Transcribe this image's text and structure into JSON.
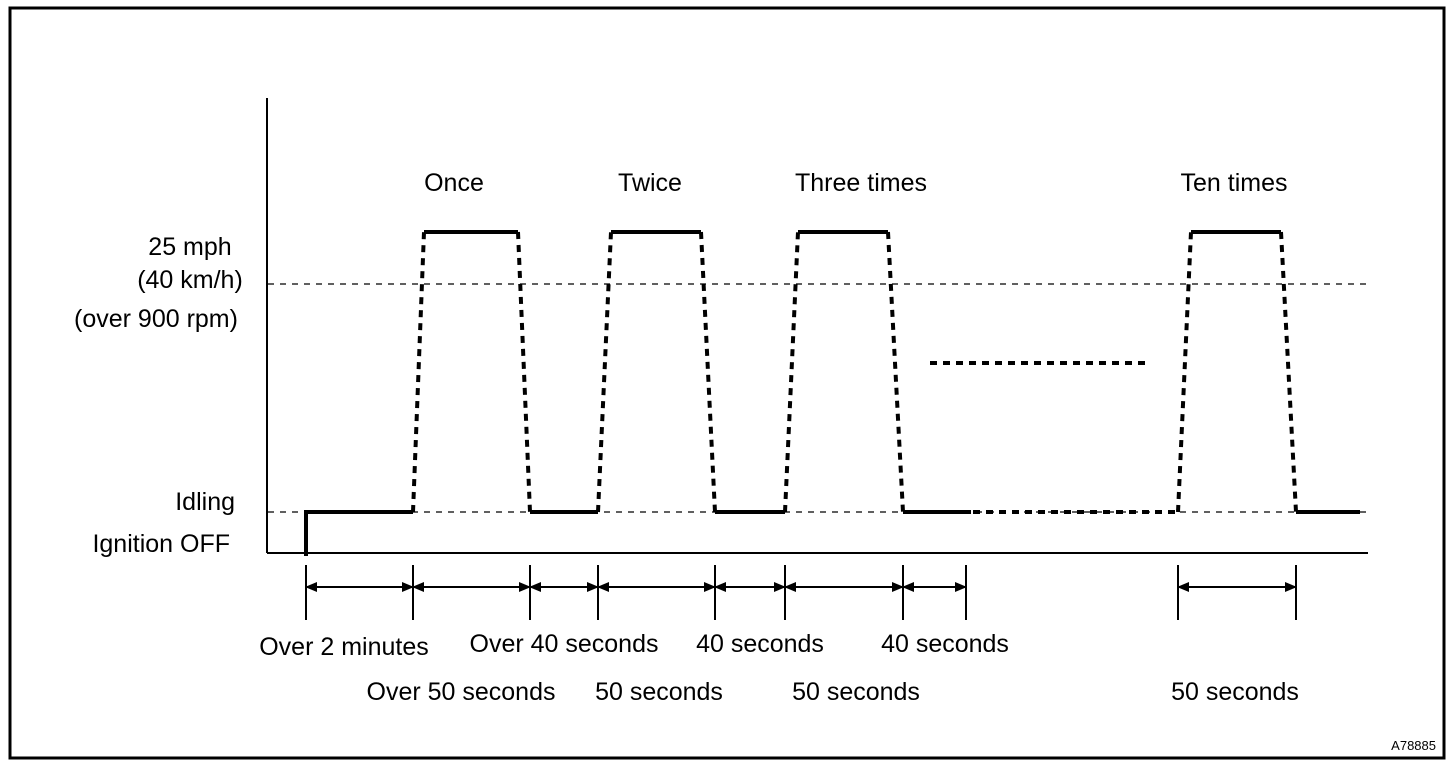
{
  "figure_id": "A78885",
  "y_levels": {
    "speed_line1": "25 mph",
    "speed_line2": "(40 km/h)",
    "speed_line3": "(over 900 rpm)",
    "idling": "Idling",
    "ignition_off": "Ignition OFF"
  },
  "cycles": [
    {
      "label": "Once"
    },
    {
      "label": "Twice"
    },
    {
      "label": "Three times"
    },
    {
      "label": "Ten times"
    }
  ],
  "durations_row1": [
    {
      "label": "Over 2 minutes"
    },
    {
      "label": "Over 40 seconds"
    },
    {
      "label": "40 seconds"
    },
    {
      "label": "40 seconds"
    }
  ],
  "durations_row2": [
    {
      "label": "Over 50 seconds"
    },
    {
      "label": "50 seconds"
    },
    {
      "label": "50 seconds"
    },
    {
      "label": "50 seconds"
    }
  ]
}
